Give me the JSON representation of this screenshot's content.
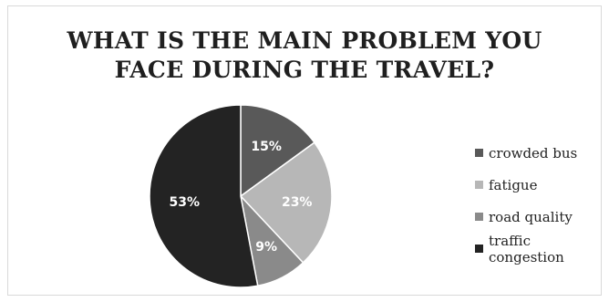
{
  "chart_data": {
    "type": "pie",
    "title": "WHAT IS THE MAIN PROBLEM YOU FACE DURING THE TRAVEL?",
    "title_lines": [
      "WHAT IS THE MAIN PROBLEM YOU",
      "FACE DURING THE TRAVEL?"
    ],
    "categories": [
      "crowded bus",
      "fatigue",
      "road quality",
      "traffic congestion"
    ],
    "values": [
      15,
      23,
      9,
      53
    ],
    "data_labels": [
      "15%",
      "23%",
      "9%",
      "53%"
    ],
    "colors": [
      "#595959",
      "#b7b7b7",
      "#8a8a8a",
      "#232323"
    ],
    "legend_position": "right"
  }
}
